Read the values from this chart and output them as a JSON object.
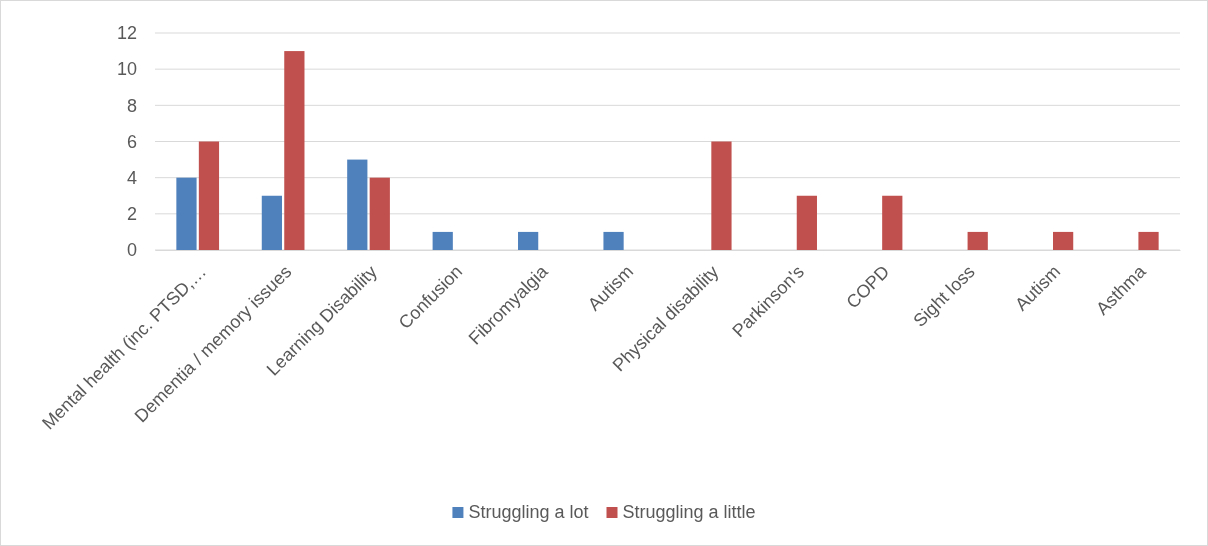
{
  "chart_data": {
    "type": "bar",
    "categories": [
      "Mental health (inc. PTSD,…",
      "Dementia / memory issues",
      "Learning Disability",
      "Confusion",
      "Fibromyalgia",
      "Autism",
      "Physical disability",
      "Parkinson's",
      "COPD",
      "Sight loss",
      "Autism",
      "Asthma"
    ],
    "series": [
      {
        "name": "Struggling a lot",
        "color": "#4f81bd",
        "values": [
          4,
          3,
          5,
          1,
          1,
          1,
          null,
          null,
          null,
          null,
          null,
          null
        ]
      },
      {
        "name": "Struggling a little",
        "color": "#c0504d",
        "values": [
          6,
          11,
          4,
          null,
          null,
          null,
          6,
          3,
          3,
          1,
          1,
          1
        ]
      }
    ],
    "ylim": [
      0,
      12
    ],
    "yticks": [
      0,
      2,
      4,
      6,
      8,
      10,
      12
    ],
    "grid": "y",
    "legend": "bottom"
  }
}
